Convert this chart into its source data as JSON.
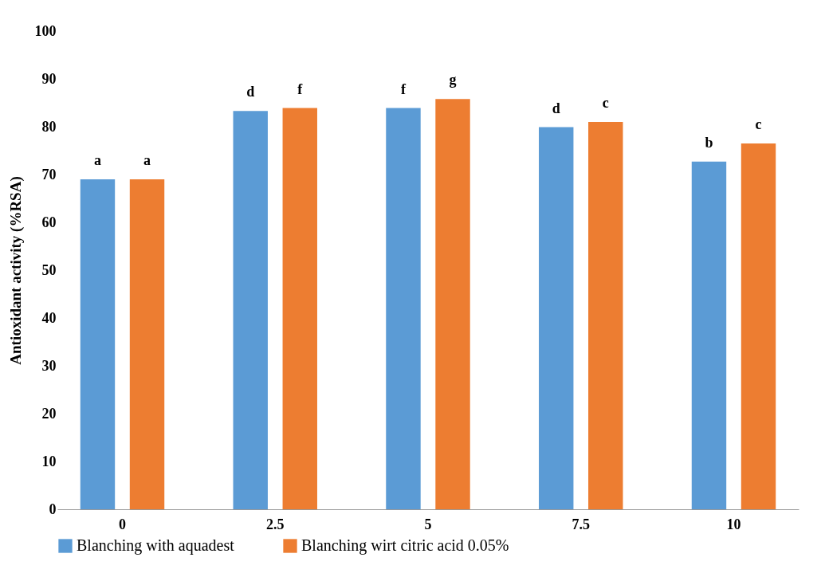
{
  "chart_data": {
    "type": "bar",
    "ylabel": "Antioxidant activity (%RSA)",
    "categories": [
      "0",
      "2.5",
      "5",
      "7.5",
      "10"
    ],
    "series": [
      {
        "name": "Blanching with aquadest",
        "color": "#5b9bd5",
        "values": [
          69.0,
          83.3,
          83.9,
          79.9,
          72.7
        ]
      },
      {
        "name": "Blanching wirt citric acid 0.05%",
        "color": "#ed7d31",
        "values": [
          69.0,
          83.9,
          85.8,
          81.0,
          76.5
        ]
      }
    ],
    "ylim": [
      0,
      100
    ],
    "yticks": [
      0,
      10,
      20,
      30,
      40,
      50,
      60,
      70,
      80,
      90,
      100
    ],
    "grid": false,
    "legend": "bottom",
    "annotations": [
      "a",
      "a",
      "d",
      "f",
      "f",
      "g",
      "d",
      "c",
      "b",
      "c"
    ]
  }
}
